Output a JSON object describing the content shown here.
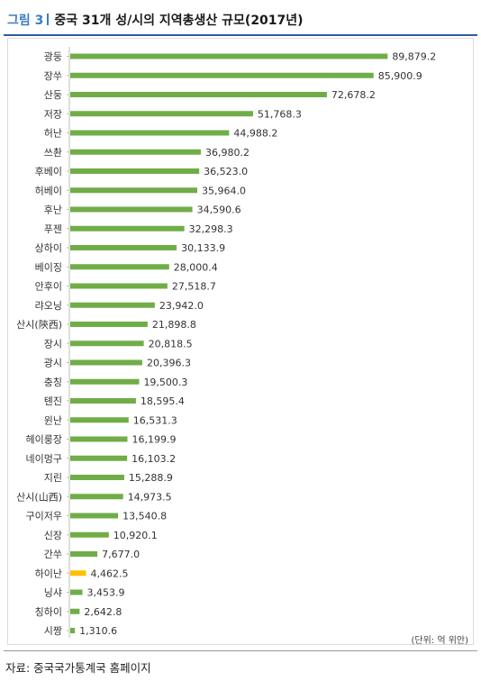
{
  "header": {
    "figure_label": "그림 3",
    "title": "중국 31개 성/시의 지역총생산 규모(2017년)"
  },
  "colors": {
    "bar": "#70ad47",
    "highlight": "#ffc000",
    "title_accent": "#3a7cc2"
  },
  "unit_note": "(단위: 억 위안)",
  "source_note": "자료: 중국국가통계국 홈페이지",
  "chart_data": {
    "type": "bar",
    "orientation": "horizontal",
    "title": "",
    "xlabel": "",
    "ylabel": "",
    "grid": false,
    "categories": [
      "광둥",
      "장쑤",
      "산둥",
      "저장",
      "허난",
      "쓰촨",
      "후베이",
      "허베이",
      "후난",
      "푸젠",
      "상하이",
      "베이징",
      "안후이",
      "랴오닝",
      "산시(陝西)",
      "장시",
      "광시",
      "충칭",
      "톈진",
      "윈난",
      "헤이룽장",
      "네이멍구",
      "지린",
      "산시(山西)",
      "구이저우",
      "신장",
      "간쑤",
      "하이난",
      "닝샤",
      "칭하이",
      "시짱"
    ],
    "values": [
      89879.2,
      85900.9,
      72678.2,
      51768.3,
      44988.2,
      36980.2,
      36523.0,
      35964.0,
      34590.6,
      32298.3,
      30133.9,
      28000.4,
      27518.7,
      23942.0,
      21898.8,
      20818.5,
      20396.3,
      19500.3,
      18595.4,
      16531.3,
      16199.9,
      16103.2,
      15288.9,
      14973.5,
      13540.8,
      10920.1,
      7677.0,
      4462.5,
      3453.9,
      2642.8,
      1310.6
    ],
    "value_labels": [
      "89,879.2",
      "85,900.9",
      "72,678.2",
      "51,768.3",
      "44,988.2",
      "36,980.2",
      "36,523.0",
      "35,964.0",
      "34,590.6",
      "32,298.3",
      "30,133.9",
      "28,000.4",
      "27,518.7",
      "23,942.0",
      "21,898.8",
      "20,818.5",
      "20,396.3",
      "19,500.3",
      "18,595.4",
      "16,531.3",
      "16,199.9",
      "16,103.2",
      "15,288.9",
      "14,973.5",
      "13,540.8",
      "10,920.1",
      "7,677.0",
      "4,462.5",
      "3,453.9",
      "2,642.8",
      "1,310.6"
    ],
    "highlight": "하이난",
    "xlim": [
      0,
      100000
    ]
  }
}
